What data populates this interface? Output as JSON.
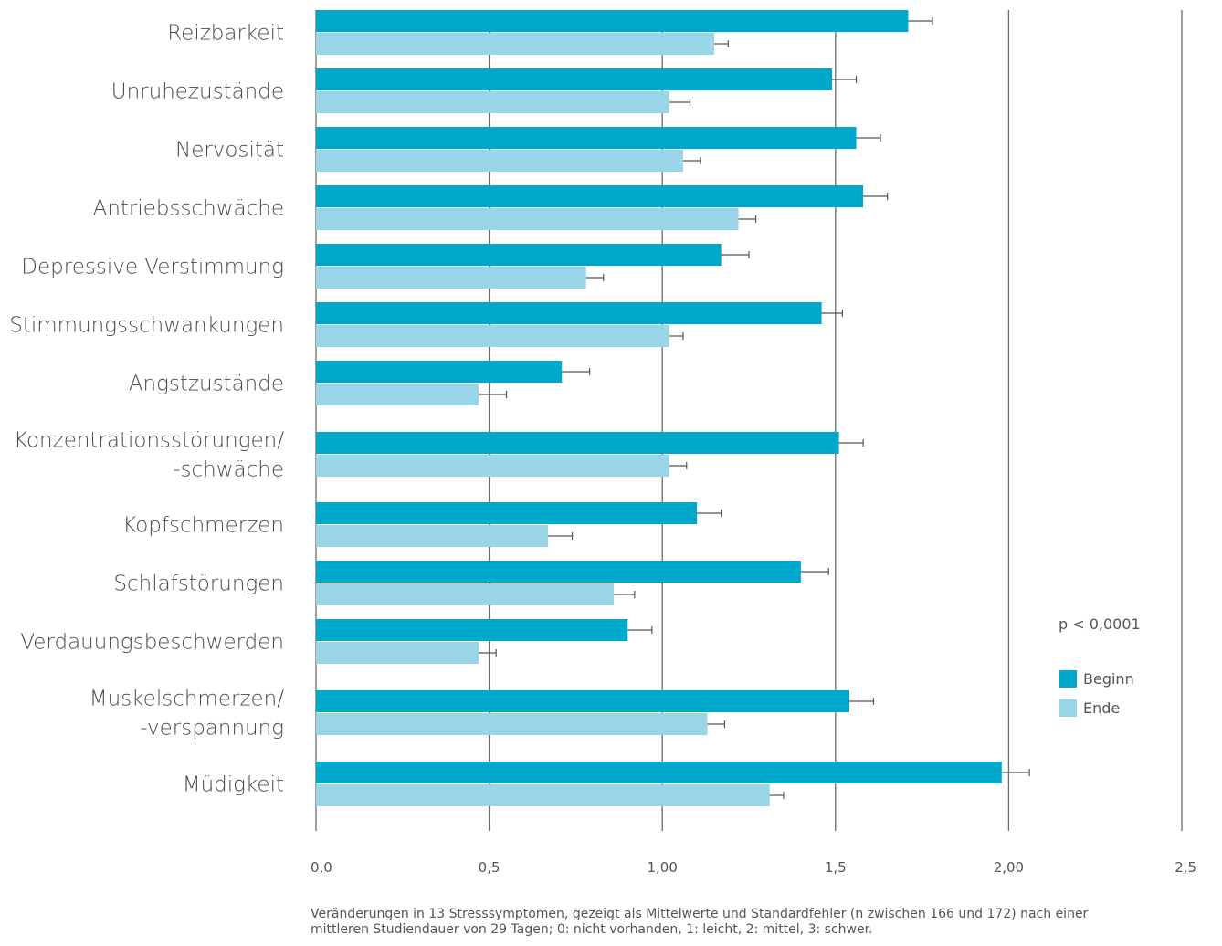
{
  "chart_data": {
    "type": "bar",
    "orientation": "horizontal",
    "categories": [
      [
        "Reizbarkeit"
      ],
      [
        "Unruhezustände"
      ],
      [
        "Nervosität"
      ],
      [
        "Antriebsschwäche"
      ],
      [
        "Depressive Verstimmung"
      ],
      [
        "Stimmungsschwankungen"
      ],
      [
        "Angstzustände"
      ],
      [
        "Konzentrationsstörungen/",
        "-schwäche"
      ],
      [
        "Kopfschmerzen"
      ],
      [
        "Schlafstörungen"
      ],
      [
        "Verdauungsbeschwerden"
      ],
      [
        "Muskelschmerzen/",
        "-verspannung"
      ],
      [
        "Müdigkeit"
      ]
    ],
    "series": [
      {
        "name": "Beginn",
        "color": "#00a8cb",
        "values": [
          1.71,
          1.49,
          1.56,
          1.58,
          1.17,
          1.46,
          0.71,
          1.51,
          1.1,
          1.4,
          0.9,
          1.54,
          1.98
        ],
        "errors": [
          0.07,
          0.07,
          0.07,
          0.07,
          0.08,
          0.06,
          0.08,
          0.07,
          0.07,
          0.08,
          0.07,
          0.07,
          0.08
        ]
      },
      {
        "name": "Ende",
        "color": "#99d5e7",
        "values": [
          1.15,
          1.02,
          1.06,
          1.22,
          0.78,
          1.02,
          0.47,
          1.02,
          0.67,
          0.86,
          0.47,
          1.13,
          1.31
        ],
        "errors": [
          0.04,
          0.06,
          0.05,
          0.05,
          0.05,
          0.04,
          0.08,
          0.05,
          0.07,
          0.06,
          0.05,
          0.05,
          0.04
        ]
      }
    ],
    "xlim": [
      0,
      2.5
    ],
    "xticks": [
      0,
      0.5,
      1,
      1.5,
      2,
      2.5
    ],
    "xtick_labels": [
      "0,0",
      "0,5",
      "1,00",
      "1,5",
      "2,00",
      "2,5"
    ],
    "annotation": "p < 0,0001",
    "legend_position": "right",
    "caption": [
      "Veränderungen in 13 Stresssymptomen, gezeigt als Mittelwerte und Standardfehler (n zwischen 166 und 172) nach einer",
      "mittleren Studiendauer von 29 Tagen; 0: nicht vorhanden, 1: leicht, 2: mittel, 3: schwer."
    ]
  }
}
